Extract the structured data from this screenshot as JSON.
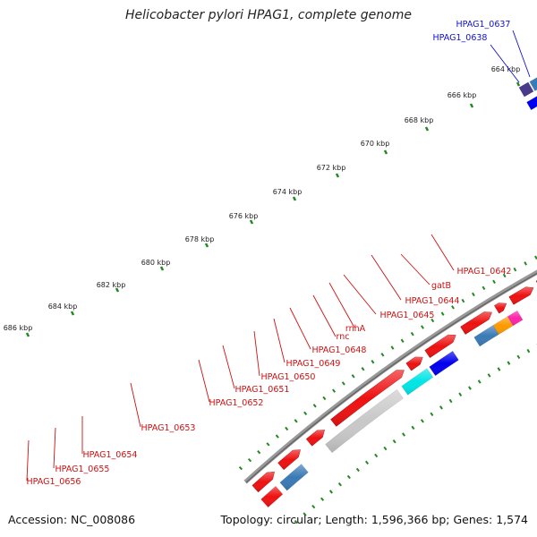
{
  "title": "Helicobacter pylori HPAG1, complete genome",
  "footer": {
    "accession_label": "Accession:",
    "accession": "NC_008086",
    "topology_label": "Topology:",
    "topology": "circular",
    "length_label": "Length:",
    "length": "1,596,366 bp",
    "genes_label": "Genes:",
    "genes": "1,574"
  },
  "colors": {
    "gene_red": "#ee1111",
    "label_red": "#cc1111",
    "label_blue": "#1111cc",
    "tick_green": "#228822",
    "backbone": "#888888"
  },
  "ruler_ticks": [
    "664 kbp",
    "666 kbp",
    "668 kbp",
    "670 kbp",
    "672 kbp",
    "674 kbp",
    "676 kbp",
    "678 kbp",
    "680 kbp",
    "682 kbp",
    "684 kbp",
    "686 kbp"
  ],
  "labels_red": [
    "HPAG1_0642",
    "gatB",
    "HPAG1_0644",
    "HPAG1_0645",
    "rnhA",
    "rnc",
    "HPAG1_0648",
    "HPAG1_0649",
    "HPAG1_0650",
    "HPAG1_0651",
    "HPAG1_0652",
    "HPAG1_0653",
    "HPAG1_0654",
    "HPAG1_0655",
    "HPAG1_0656"
  ],
  "labels_blue": [
    "HPAG1_0637",
    "HPAG1_0638"
  ]
}
